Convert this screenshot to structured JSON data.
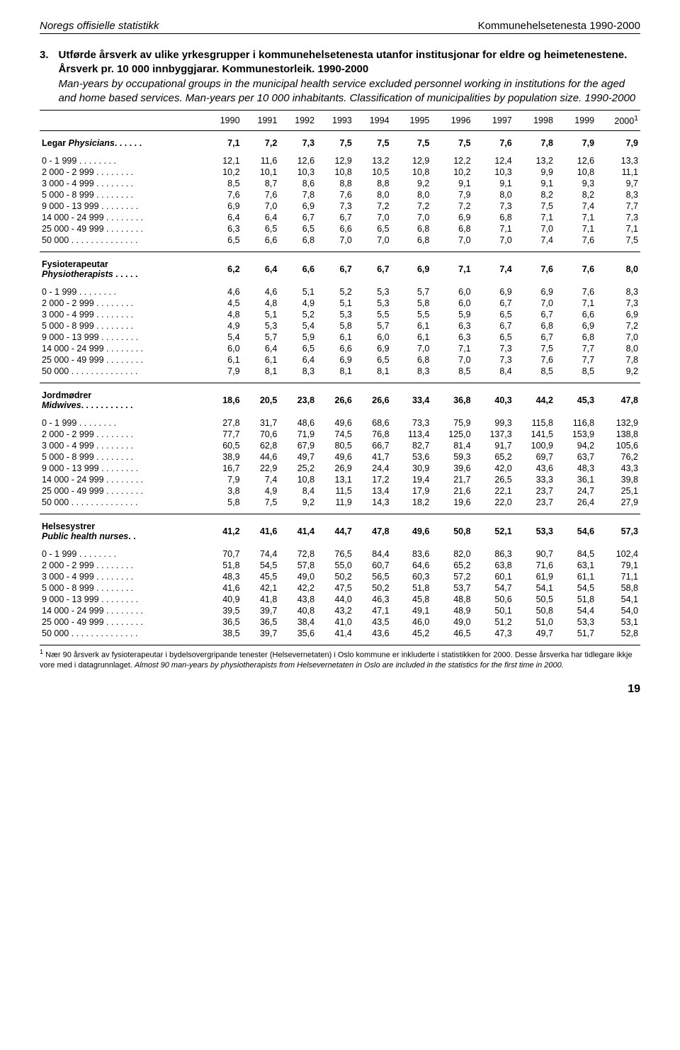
{
  "header": {
    "left": "Noregs offisielle statistikk",
    "right": "Kommunehelsetenesta 1990-2000"
  },
  "title": {
    "number": "3.",
    "line_bold": "Utførde årsverk av ulike yrkesgrupper i kommunehelsetenesta utanfor institusjonar for eldre og heimetenestene. Årsverk pr. 10 000 innbyggjarar. Kommunestorleik. 1990-2000",
    "line_italic": "Man-years by occupational groups in the municipal health service excluded personnel working in institutions for the aged and home based services. Man-years per 10 000 inhabitants. Classification of municipalities by population size. 1990-2000"
  },
  "years": [
    "1990",
    "1991",
    "1992",
    "1993",
    "1994",
    "1995",
    "1996",
    "1997",
    "1998",
    "1999",
    "2000"
  ],
  "sup": "1",
  "sections": [
    {
      "label_main": "Legar",
      "label_sub": "Physicians",
      "label_suffix": ". . . . . .",
      "head_values": [
        "7,1",
        "7,2",
        "7,3",
        "7,5",
        "7,5",
        "7,5",
        "7,5",
        "7,6",
        "7,8",
        "7,9",
        "7,9"
      ],
      "rows": [
        {
          "label": "0 -   1 999 . . . . . . . .",
          "v": [
            "12,1",
            "11,6",
            "12,6",
            "12,9",
            "13,2",
            "12,9",
            "12,2",
            "12,4",
            "13,2",
            "12,6",
            "13,3"
          ]
        },
        {
          "label": "2 000 -   2 999 . . . . . . . .",
          "v": [
            "10,2",
            "10,1",
            "10,3",
            "10,8",
            "10,5",
            "10,8",
            "10,2",
            "10,3",
            "9,9",
            "10,8",
            "11,1"
          ]
        },
        {
          "label": "3 000 -   4 999 . . . . . . . .",
          "v": [
            "8,5",
            "8,7",
            "8,6",
            "8,8",
            "8,8",
            "9,2",
            "9,1",
            "9,1",
            "9,1",
            "9,3",
            "9,7"
          ]
        },
        {
          "label": "5 000 -   8 999 . . . . . . . .",
          "v": [
            "7,6",
            "7,6",
            "7,8",
            "7,6",
            "8,0",
            "8,0",
            "7,9",
            "8,0",
            "8,2",
            "8,2",
            "8,3"
          ]
        },
        {
          "label": "9 000 - 13 999 . . . . . . . .",
          "v": [
            "6,9",
            "7,0",
            "6,9",
            "7,3",
            "7,2",
            "7,2",
            "7,2",
            "7,3",
            "7,5",
            "7,4",
            "7,7"
          ]
        },
        {
          "label": "14 000 - 24 999 . . . . . . . .",
          "v": [
            "6,4",
            "6,4",
            "6,7",
            "6,7",
            "7,0",
            "7,0",
            "6,9",
            "6,8",
            "7,1",
            "7,1",
            "7,3"
          ]
        },
        {
          "label": "25 000 - 49 999 . . . . . . . .",
          "v": [
            "6,3",
            "6,5",
            "6,5",
            "6,6",
            "6,5",
            "6,8",
            "6,8",
            "7,1",
            "7,0",
            "7,1",
            "7,1"
          ]
        },
        {
          "label": "50 000  . . . . . . . . . . . . . .",
          "v": [
            "6,5",
            "6,6",
            "6,8",
            "7,0",
            "7,0",
            "6,8",
            "7,0",
            "7,0",
            "7,4",
            "7,6",
            "7,5"
          ]
        }
      ]
    },
    {
      "label_main": "Fysioterapeutar",
      "label_sub": "Physiotherapists",
      "label_suffix": " . . . . .",
      "head_values": [
        "6,2",
        "6,4",
        "6,6",
        "6,7",
        "6,7",
        "6,9",
        "7,1",
        "7,4",
        "7,6",
        "7,6",
        "8,0"
      ],
      "rows": [
        {
          "label": "0 -   1 999 . . . . . . . .",
          "v": [
            "4,6",
            "4,6",
            "5,1",
            "5,2",
            "5,3",
            "5,7",
            "6,0",
            "6,9",
            "6,9",
            "7,6",
            "8,3"
          ]
        },
        {
          "label": "2 000 -   2 999 . . . . . . . .",
          "v": [
            "4,5",
            "4,8",
            "4,9",
            "5,1",
            "5,3",
            "5,8",
            "6,0",
            "6,7",
            "7,0",
            "7,1",
            "7,3"
          ]
        },
        {
          "label": "3 000 -   4 999 . . . . . . . .",
          "v": [
            "4,8",
            "5,1",
            "5,2",
            "5,3",
            "5,5",
            "5,5",
            "5,9",
            "6,5",
            "6,7",
            "6,6",
            "6,9"
          ]
        },
        {
          "label": "5 000 -   8 999 . . . . . . . .",
          "v": [
            "4,9",
            "5,3",
            "5,4",
            "5,8",
            "5,7",
            "6,1",
            "6,3",
            "6,7",
            "6,8",
            "6,9",
            "7,2"
          ]
        },
        {
          "label": "9 000 - 13 999 . . . . . . . .",
          "v": [
            "5,4",
            "5,7",
            "5,9",
            "6,1",
            "6,0",
            "6,1",
            "6,3",
            "6,5",
            "6,7",
            "6,8",
            "7,0"
          ]
        },
        {
          "label": "14 000 - 24 999 . . . . . . . .",
          "v": [
            "6,0",
            "6,4",
            "6,5",
            "6,6",
            "6,9",
            "7,0",
            "7,1",
            "7,3",
            "7,5",
            "7,7",
            "8,0"
          ]
        },
        {
          "label": "25 000 - 49 999 . . . . . . . .",
          "v": [
            "6,1",
            "6,1",
            "6,4",
            "6,9",
            "6,5",
            "6,8",
            "7,0",
            "7,3",
            "7,6",
            "7,7",
            "7,8"
          ]
        },
        {
          "label": "50 000  . . . . . . . . . . . . . .",
          "v": [
            "7,9",
            "8,1",
            "8,3",
            "8,1",
            "8,1",
            "8,3",
            "8,5",
            "8,4",
            "8,5",
            "8,5",
            "9,2"
          ]
        }
      ]
    },
    {
      "label_main": "Jordmødrer",
      "label_sub": "Midwives",
      "label_suffix": ". . . . . . . . . . .",
      "head_values": [
        "18,6",
        "20,5",
        "23,8",
        "26,6",
        "26,6",
        "33,4",
        "36,8",
        "40,3",
        "44,2",
        "45,3",
        "47,8"
      ],
      "rows": [
        {
          "label": "0 -   1 999 . . . . . . . .",
          "v": [
            "27,8",
            "31,7",
            "48,6",
            "49,6",
            "68,6",
            "73,3",
            "75,9",
            "99,3",
            "115,8",
            "116,8",
            "132,9"
          ]
        },
        {
          "label": "2 000 -   2 999 . . . . . . . .",
          "v": [
            "77,7",
            "70,6",
            "71,9",
            "74,5",
            "76,8",
            "113,4",
            "125,0",
            "137,3",
            "141,5",
            "153,9",
            "138,8"
          ]
        },
        {
          "label": "3 000 -   4 999 . . . . . . . .",
          "v": [
            "60,5",
            "62,8",
            "67,9",
            "80,5",
            "66,7",
            "82,7",
            "81,4",
            "91,7",
            "100,9",
            "94,2",
            "105,6"
          ]
        },
        {
          "label": "5 000 -   8 999 . . . . . . . .",
          "v": [
            "38,9",
            "44,6",
            "49,7",
            "49,6",
            "41,7",
            "53,6",
            "59,3",
            "65,2",
            "69,7",
            "63,7",
            "76,2"
          ]
        },
        {
          "label": "9 000 - 13 999 . . . . . . . .",
          "v": [
            "16,7",
            "22,9",
            "25,2",
            "26,9",
            "24,4",
            "30,9",
            "39,6",
            "42,0",
            "43,6",
            "48,3",
            "43,3"
          ]
        },
        {
          "label": "14 000 - 24 999 . . . . . . . .",
          "v": [
            "7,9",
            "7,4",
            "10,8",
            "13,1",
            "17,2",
            "19,4",
            "21,7",
            "26,5",
            "33,3",
            "36,1",
            "39,8"
          ]
        },
        {
          "label": "25 000 - 49 999 . . . . . . . .",
          "v": [
            "3,8",
            "4,9",
            "8,4",
            "11,5",
            "13,4",
            "17,9",
            "21,6",
            "22,1",
            "23,7",
            "24,7",
            "25,1"
          ]
        },
        {
          "label": "50 000  . . . . . . . . . . . . . .",
          "v": [
            "5,8",
            "7,5",
            "9,2",
            "11,9",
            "14,3",
            "18,2",
            "19,6",
            "22,0",
            "23,7",
            "26,4",
            "27,9"
          ]
        }
      ]
    },
    {
      "label_main": "Helsesystrer",
      "label_sub": "Public health nurses",
      "label_suffix": ". .",
      "head_values": [
        "41,2",
        "41,6",
        "41,4",
        "44,7",
        "47,8",
        "49,6",
        "50,8",
        "52,1",
        "53,3",
        "54,6",
        "57,3"
      ],
      "rows": [
        {
          "label": "0 -   1 999 . . . . . . . .",
          "v": [
            "70,7",
            "74,4",
            "72,8",
            "76,5",
            "84,4",
            "83,6",
            "82,0",
            "86,3",
            "90,7",
            "84,5",
            "102,4"
          ]
        },
        {
          "label": "2 000 -   2 999 . . . . . . . .",
          "v": [
            "51,8",
            "54,5",
            "57,8",
            "55,0",
            "60,7",
            "64,6",
            "65,2",
            "63,8",
            "71,6",
            "63,1",
            "79,1"
          ]
        },
        {
          "label": "3 000 -   4 999 . . . . . . . .",
          "v": [
            "48,3",
            "45,5",
            "49,0",
            "50,2",
            "56,5",
            "60,3",
            "57,2",
            "60,1",
            "61,9",
            "61,1",
            "71,1"
          ]
        },
        {
          "label": "5 000 -   8 999 . . . . . . . .",
          "v": [
            "41,6",
            "42,1",
            "42,2",
            "47,5",
            "50,2",
            "51,8",
            "53,7",
            "54,7",
            "54,1",
            "54,5",
            "58,8"
          ]
        },
        {
          "label": "9 000 - 13 999 . . . . . . . .",
          "v": [
            "40,9",
            "41,8",
            "43,8",
            "44,0",
            "46,3",
            "45,8",
            "48,8",
            "50,6",
            "50,5",
            "51,8",
            "54,1"
          ]
        },
        {
          "label": "14 000 - 24 999 . . . . . . . .",
          "v": [
            "39,5",
            "39,7",
            "40,8",
            "43,2",
            "47,1",
            "49,1",
            "48,9",
            "50,1",
            "50,8",
            "54,4",
            "54,0"
          ]
        },
        {
          "label": "25 000 - 49 999 . . . . . . . .",
          "v": [
            "36,5",
            "36,5",
            "38,4",
            "41,0",
            "43,5",
            "46,0",
            "49,0",
            "51,2",
            "51,0",
            "53,3",
            "53,1"
          ]
        },
        {
          "label": "50 000  . . . . . . . . . . . . . .",
          "v": [
            "38,5",
            "39,7",
            "35,6",
            "41,4",
            "43,6",
            "45,2",
            "46,5",
            "47,3",
            "49,7",
            "51,7",
            "52,8"
          ]
        }
      ]
    }
  ],
  "footnote": {
    "sup": "1",
    "regular": " Nær 90 årsverk av fysioterapeutar i bydelsovergripande tenester (Helsevernetaten) i Oslo kommune er inkluderte i statistikken for 2000. Desse årsverka har tidlegare ikkje vore med i datagrunnlaget. ",
    "italic": "Almost 90 man-years by physiotherapists from Helsevernetaten in Oslo are included in the statistics for the first time in 2000."
  },
  "page_number": "19"
}
